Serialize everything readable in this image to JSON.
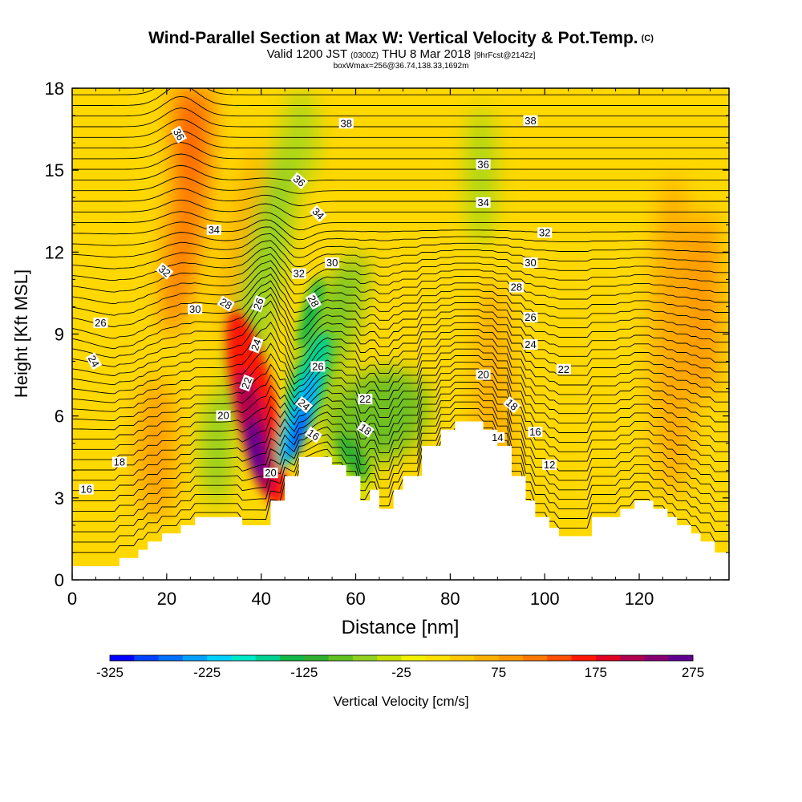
{
  "header": {
    "title": "Wind-Parallel Section at Max W: Vertical Velocity & Pot.Temp.",
    "copyright": "(C)",
    "valid_prefix": "Valid 1200 JST",
    "valid_utc": "(0300Z)",
    "valid_date": "THU 8 Mar 2018",
    "forecast": "[9hrFcst@2142z]",
    "box_info": "boxWmax=256@36.74,138.33,1692m"
  },
  "chart_data": {
    "type": "heatmap",
    "xlabel": "Distance [nm]",
    "ylabel": "Height [Kft MSL]",
    "xlim": [
      0,
      139
    ],
    "ylim": [
      0,
      18
    ],
    "x_ticks": [
      "0",
      "20",
      "40",
      "60",
      "80",
      "100",
      "120"
    ],
    "x_tick_values": [
      0,
      20,
      40,
      60,
      80,
      100,
      120
    ],
    "y_ticks": [
      "0",
      "3",
      "6",
      "9",
      "12",
      "15",
      "18"
    ],
    "y_tick_values": [
      0,
      3,
      6,
      9,
      12,
      15,
      18
    ],
    "colorbar": {
      "label": "Vertical Velocity [cm/s]",
      "ticks": [
        "-325",
        "-225",
        "-125",
        "-25",
        "75",
        "175",
        "275"
      ],
      "min": -325,
      "max": 275,
      "step": 25,
      "colors": [
        "#0000ff",
        "#0040ff",
        "#0070ff",
        "#00a0ff",
        "#00d0ff",
        "#00e8c8",
        "#00d090",
        "#10b848",
        "#30b030",
        "#60c020",
        "#90d020",
        "#c8e000",
        "#f0f000",
        "#ffe000",
        "#ffc800",
        "#ffb000",
        "#ff9800",
        "#ff7800",
        "#ff5000",
        "#ff1800",
        "#e00020",
        "#b00050",
        "#880070",
        "#600090"
      ]
    },
    "terrain": [
      [
        0,
        0.5
      ],
      [
        10,
        0.5
      ],
      [
        10,
        0.8
      ],
      [
        14,
        0.8
      ],
      [
        14,
        1.1
      ],
      [
        16,
        1.1
      ],
      [
        16,
        1.4
      ],
      [
        19,
        1.4
      ],
      [
        19,
        1.7
      ],
      [
        23,
        1.7
      ],
      [
        23,
        2.0
      ],
      [
        26,
        2.0
      ],
      [
        26,
        2.3
      ],
      [
        36,
        2.3
      ],
      [
        36,
        2.0
      ],
      [
        42,
        2.0
      ],
      [
        42,
        2.9
      ],
      [
        45,
        2.9
      ],
      [
        45,
        3.8
      ],
      [
        48,
        3.8
      ],
      [
        48,
        4.5
      ],
      [
        55,
        4.5
      ],
      [
        55,
        4.2
      ],
      [
        58,
        4.2
      ],
      [
        58,
        3.8
      ],
      [
        61,
        3.8
      ],
      [
        61,
        2.9
      ],
      [
        63,
        2.9
      ],
      [
        63,
        3.3
      ],
      [
        65,
        3.3
      ],
      [
        65,
        2.6
      ],
      [
        68,
        2.6
      ],
      [
        68,
        3.3
      ],
      [
        70,
        3.3
      ],
      [
        70,
        3.8
      ],
      [
        74,
        3.8
      ],
      [
        74,
        4.9
      ],
      [
        78,
        4.9
      ],
      [
        78,
        5.5
      ],
      [
        81,
        5.5
      ],
      [
        81,
        5.8
      ],
      [
        87,
        5.8
      ],
      [
        87,
        5.5
      ],
      [
        90,
        5.5
      ],
      [
        90,
        4.9
      ],
      [
        93,
        4.9
      ],
      [
        93,
        3.8
      ],
      [
        96,
        3.8
      ],
      [
        96,
        2.9
      ],
      [
        98,
        2.9
      ],
      [
        98,
        2.3
      ],
      [
        101,
        2.3
      ],
      [
        101,
        1.9
      ],
      [
        103,
        1.9
      ],
      [
        103,
        1.6
      ],
      [
        110,
        1.6
      ],
      [
        110,
        2.3
      ],
      [
        116,
        2.3
      ],
      [
        116,
        2.6
      ],
      [
        119,
        2.6
      ],
      [
        119,
        2.9
      ],
      [
        123,
        2.9
      ],
      [
        123,
        2.6
      ],
      [
        126,
        2.6
      ],
      [
        126,
        2.3
      ],
      [
        128,
        2.3
      ],
      [
        128,
        2.0
      ],
      [
        131,
        2.0
      ],
      [
        131,
        1.7
      ],
      [
        133,
        1.7
      ],
      [
        133,
        1.4
      ],
      [
        136,
        1.4
      ],
      [
        136,
        1.0
      ],
      [
        139,
        1.0
      ]
    ],
    "updraft_cores": [
      {
        "x": 40,
        "y": 4.8,
        "value": 275
      },
      {
        "x": 25,
        "y": 15.5,
        "value": 125
      }
    ],
    "downdraft_cores": [
      {
        "x": 48,
        "y": 5.3,
        "value": -275
      },
      {
        "x": 61,
        "y": 4.3,
        "value": -125
      },
      {
        "x": 34,
        "y": 11.0,
        "value": -100
      }
    ],
    "isentrope_labels": [
      {
        "text": "16",
        "x": 3,
        "y": 3.3,
        "rot": 0
      },
      {
        "text": "18",
        "x": 10,
        "y": 4.3,
        "rot": 0
      },
      {
        "text": "20",
        "x": 32,
        "y": 6.0,
        "rot": 0
      },
      {
        "text": "22",
        "x": 37,
        "y": 7.2,
        "rot": -70
      },
      {
        "text": "24",
        "x": 39,
        "y": 8.6,
        "rot": -70
      },
      {
        "text": "26",
        "x": 39.5,
        "y": 10.1,
        "rot": -70
      },
      {
        "text": "20",
        "x": 42,
        "y": 3.9,
        "rot": 0
      },
      {
        "text": "16",
        "x": 51,
        "y": 5.3,
        "rot": 35
      },
      {
        "text": "24",
        "x": 49,
        "y": 6.4,
        "rot": 40
      },
      {
        "text": "26",
        "x": 52,
        "y": 7.8,
        "rot": 0
      },
      {
        "text": "28",
        "x": 51,
        "y": 10.2,
        "rot": 60
      },
      {
        "text": "32",
        "x": 48,
        "y": 11.2,
        "rot": 0
      },
      {
        "text": "34",
        "x": 52,
        "y": 13.4,
        "rot": 45
      },
      {
        "text": "36",
        "x": 48,
        "y": 14.6,
        "rot": 40
      },
      {
        "text": "30",
        "x": 55,
        "y": 11.6,
        "rot": 0
      },
      {
        "text": "38",
        "x": 58,
        "y": 16.7,
        "rot": 0
      },
      {
        "text": "22",
        "x": 62,
        "y": 6.6,
        "rot": 0
      },
      {
        "text": "18",
        "x": 62,
        "y": 5.5,
        "rot": 35
      },
      {
        "text": "36",
        "x": 22.5,
        "y": 16.3,
        "rot": 60
      },
      {
        "text": "34",
        "x": 30,
        "y": 12.8,
        "rot": 0
      },
      {
        "text": "32",
        "x": 19.5,
        "y": 11.3,
        "rot": 40
      },
      {
        "text": "30",
        "x": 26,
        "y": 9.9,
        "rot": 0
      },
      {
        "text": "28",
        "x": 32.5,
        "y": 10.1,
        "rot": 30
      },
      {
        "text": "26",
        "x": 6,
        "y": 9.4,
        "rot": 0
      },
      {
        "text": "24",
        "x": 4.5,
        "y": 8.0,
        "rot": 60
      },
      {
        "text": "38",
        "x": 97,
        "y": 16.8,
        "rot": 0
      },
      {
        "text": "36",
        "x": 87,
        "y": 15.2,
        "rot": 0
      },
      {
        "text": "34",
        "x": 87,
        "y": 13.8,
        "rot": 0
      },
      {
        "text": "32",
        "x": 100,
        "y": 12.7,
        "rot": 0
      },
      {
        "text": "30",
        "x": 97,
        "y": 11.6,
        "rot": 0
      },
      {
        "text": "28",
        "x": 94,
        "y": 10.7,
        "rot": 0
      },
      {
        "text": "26",
        "x": 97,
        "y": 9.6,
        "rot": 0
      },
      {
        "text": "24",
        "x": 97,
        "y": 8.6,
        "rot": 0
      },
      {
        "text": "22",
        "x": 104,
        "y": 7.7,
        "rot": 0
      },
      {
        "text": "20",
        "x": 87,
        "y": 7.5,
        "rot": 0
      },
      {
        "text": "18",
        "x": 93,
        "y": 6.4,
        "rot": 40
      },
      {
        "text": "16",
        "x": 98,
        "y": 5.4,
        "rot": 0
      },
      {
        "text": "14",
        "x": 90,
        "y": 5.2,
        "rot": 0
      },
      {
        "text": "12",
        "x": 101,
        "y": 4.2,
        "rot": 0
      }
    ]
  }
}
